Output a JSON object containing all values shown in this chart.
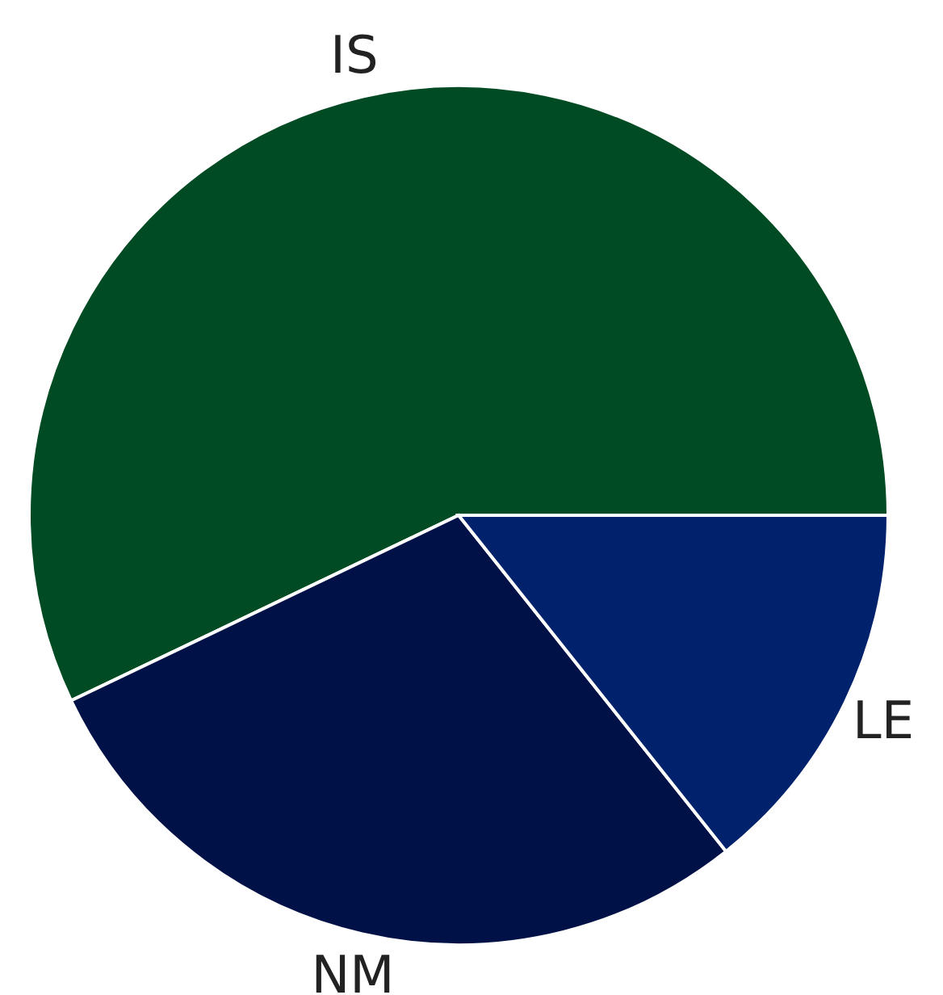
{
  "chart_data": {
    "type": "pie",
    "categories": [
      "IS",
      "NM",
      "LE"
    ],
    "values": [
      57.1,
      28.6,
      14.3
    ],
    "colors": [
      "#004b23",
      "#001147",
      "#00216b"
    ],
    "legend": false
  }
}
